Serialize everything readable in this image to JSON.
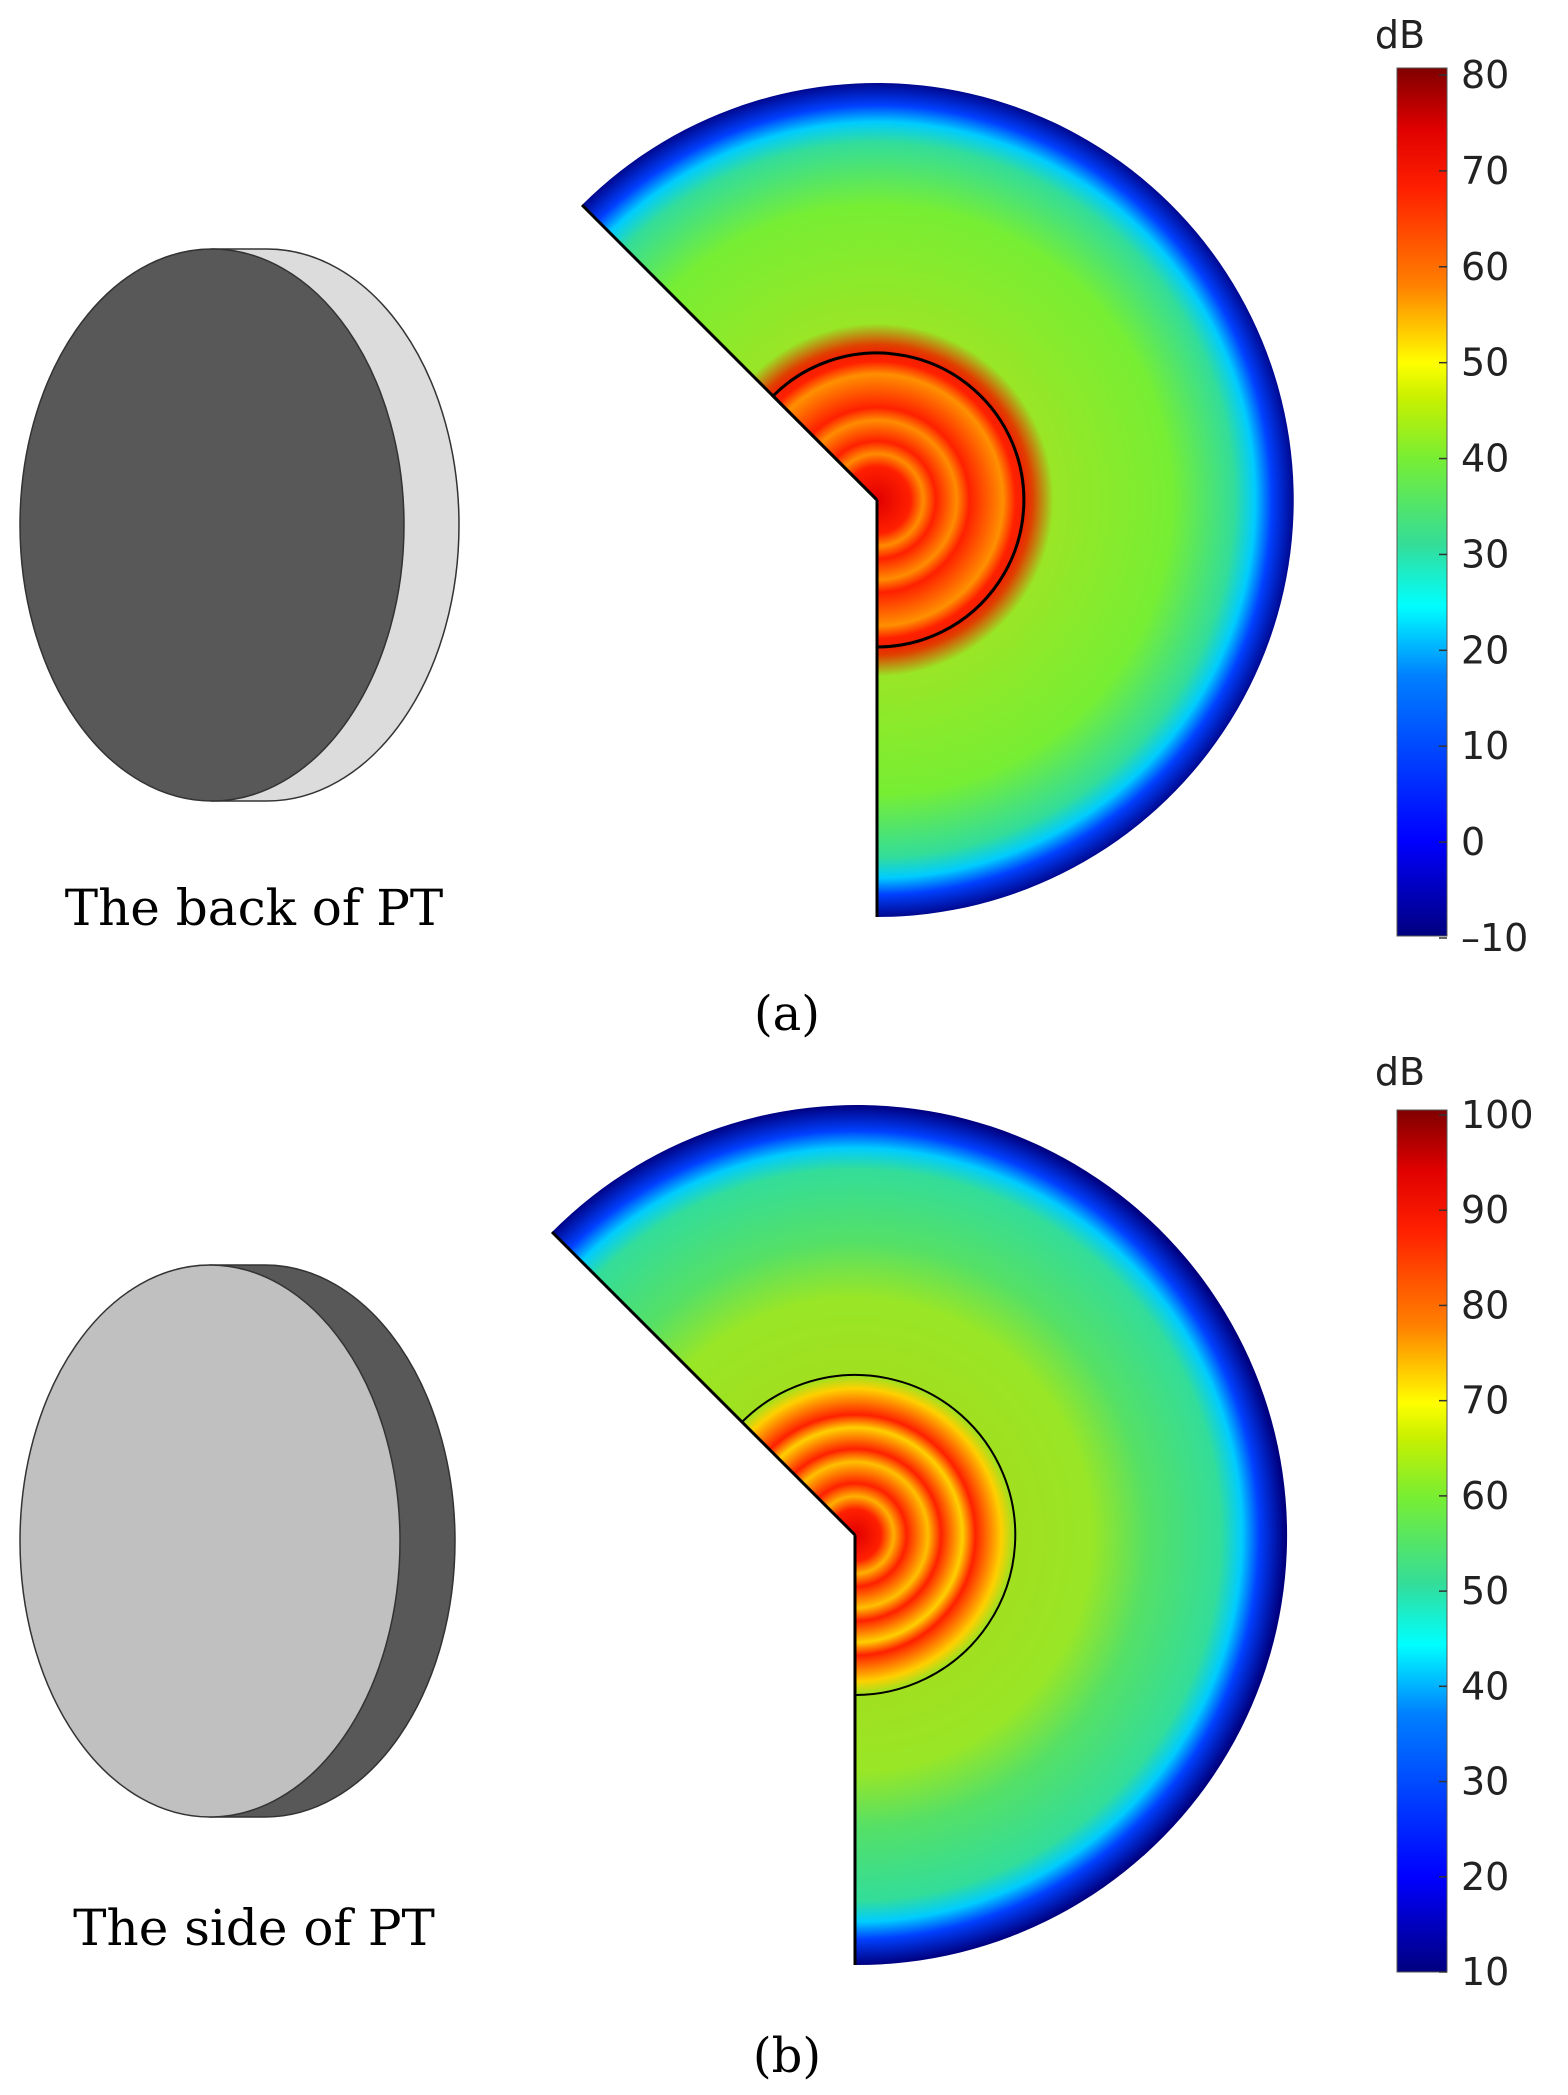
{
  "panels": [
    {
      "id": "a",
      "device_caption": "The back of PT",
      "panel_label": "(a)",
      "face_shaded": "back",
      "colorbar": {
        "unit": "dB",
        "min": -10,
        "max": 80,
        "ticks": [
          "80",
          "70",
          "60",
          "50",
          "40",
          "30",
          "20",
          "10",
          "0",
          "–10"
        ]
      },
      "field_levels_dB": {
        "center": 72,
        "inner_disk_edge": 65,
        "mid_field": 40,
        "near_edge": 30,
        "edge": -10
      }
    },
    {
      "id": "b",
      "device_caption": "The side of PT",
      "panel_label": "(b)",
      "face_shaded": "side",
      "colorbar": {
        "unit": "dB",
        "min": 10,
        "max": 100,
        "ticks": [
          "100",
          "90",
          "80",
          "70",
          "60",
          "50",
          "40",
          "30",
          "20",
          "10"
        ]
      },
      "field_levels_dB": {
        "center": 90,
        "inner_disk_edge": 80,
        "mid_field": 60,
        "near_edge": 50,
        "edge": 10
      }
    }
  ],
  "colors": {
    "dark_face": "#585858",
    "light_face": "#dcdcdc",
    "light_face_b": "#c0c0c0",
    "colormap": [
      "#00007f",
      "#0000ff",
      "#0080ff",
      "#00ffff",
      "#33dd99",
      "#77ee33",
      "#c8f000",
      "#ffff00",
      "#ff8000",
      "#ff2000",
      "#e00000",
      "#7f0000"
    ]
  }
}
